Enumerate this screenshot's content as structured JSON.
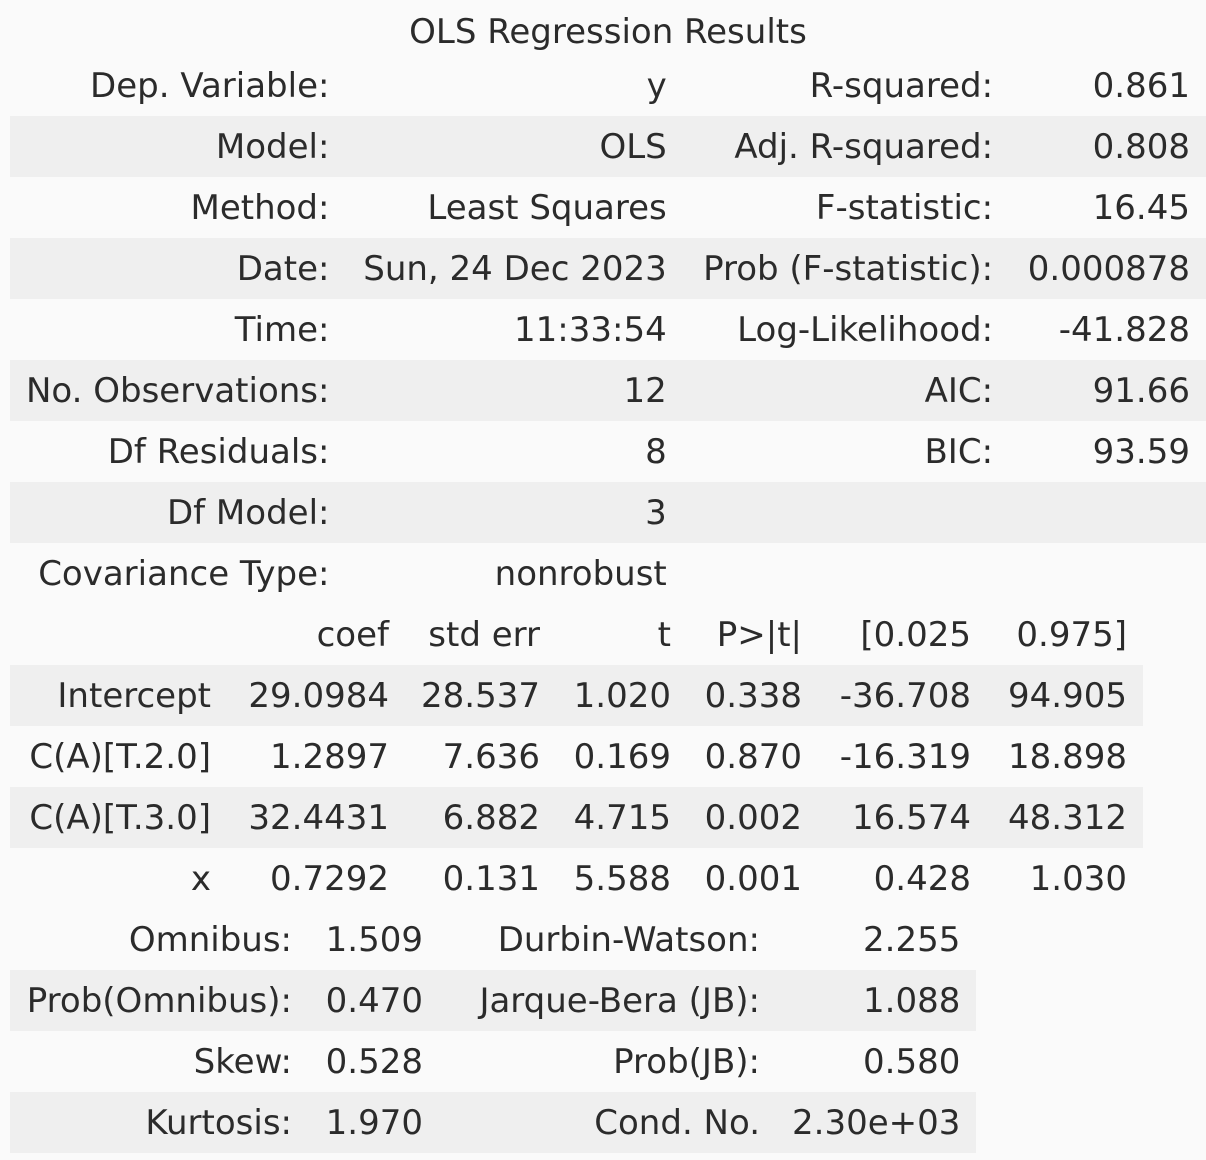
{
  "caption": "OLS Regression Results",
  "summary_rows": [
    {
      "l1": "Dep. Variable:",
      "v1": "y",
      "l2": "R-squared:",
      "v2": "0.861"
    },
    {
      "l1": "Model:",
      "v1": "OLS",
      "l2": "Adj. R-squared:",
      "v2": "0.808"
    },
    {
      "l1": "Method:",
      "v1": "Least Squares",
      "l2": "F-statistic:",
      "v2": "16.45"
    },
    {
      "l1": "Date:",
      "v1": "Sun, 24 Dec 2023",
      "l2": "Prob (F-statistic):",
      "v2": "0.000878"
    },
    {
      "l1": "Time:",
      "v1": "11:33:54",
      "l2": "Log-Likelihood:",
      "v2": "-41.828"
    },
    {
      "l1": "No. Observations:",
      "v1": "12",
      "l2": "AIC:",
      "v2": "91.66"
    },
    {
      "l1": "Df Residuals:",
      "v1": "8",
      "l2": "BIC:",
      "v2": "93.59"
    },
    {
      "l1": "Df Model:",
      "v1": "3",
      "l2": "",
      "v2": ""
    },
    {
      "l1": "Covariance Type:",
      "v1": "nonrobust",
      "l2": "",
      "v2": ""
    }
  ],
  "coef_header": [
    "",
    "coef",
    "std err",
    "t",
    "P>|t|",
    "[0.025",
    "0.975]"
  ],
  "coef_rows": [
    [
      "Intercept",
      "29.0984",
      "28.537",
      "1.020",
      "0.338",
      "-36.708",
      "94.905"
    ],
    [
      "C(A)[T.2.0]",
      "1.2897",
      "7.636",
      "0.169",
      "0.870",
      "-16.319",
      "18.898"
    ],
    [
      "C(A)[T.3.0]",
      "32.4431",
      "6.882",
      "4.715",
      "0.002",
      "16.574",
      "48.312"
    ],
    [
      "x",
      "0.7292",
      "0.131",
      "5.588",
      "0.001",
      "0.428",
      "1.030"
    ]
  ],
  "diag_rows": [
    {
      "l1": "Omnibus:",
      "v1": "1.509",
      "l2": "Durbin-Watson:",
      "v2": "2.255"
    },
    {
      "l1": "Prob(Omnibus):",
      "v1": "0.470",
      "l2": "Jarque-Bera (JB):",
      "v2": "1.088"
    },
    {
      "l1": "Skew:",
      "v1": "0.528",
      "l2": "Prob(JB):",
      "v2": "0.580"
    },
    {
      "l1": "Kurtosis:",
      "v1": "1.970",
      "l2": "Cond. No.",
      "v2": "2.30e+03"
    }
  ]
}
